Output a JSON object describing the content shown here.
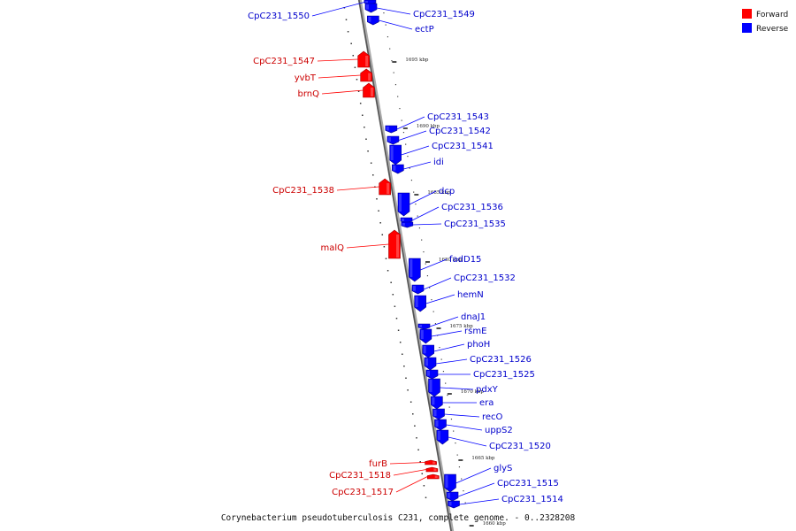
{
  "caption": "Corynebacterium pseudotuberculosis C231, complete genome. - 0..2328208",
  "legend": [
    {
      "label": "Forward",
      "color": "#ff0000"
    },
    {
      "label": "Reverse",
      "color": "#0000ff"
    }
  ],
  "colors": {
    "forward": "#ff0000",
    "reverse": "#0000ff",
    "backbone": "#888888"
  },
  "ticks": [
    "1695 kbp",
    "1690 kbp",
    "1685 kbp",
    "1680 kbp",
    "1675 kbp",
    "1670 kbp",
    "1665 kbp",
    "1660 kbp"
  ],
  "genes": [
    {
      "name": "CpC231_1550",
      "strand": "reverse"
    },
    {
      "name": "CpC231_1549",
      "strand": "reverse"
    },
    {
      "name": "ectP",
      "strand": "reverse"
    },
    {
      "name": "CpC231_1547",
      "strand": "forward"
    },
    {
      "name": "yvbT",
      "strand": "forward"
    },
    {
      "name": "brnQ",
      "strand": "forward"
    },
    {
      "name": "CpC231_1543",
      "strand": "reverse"
    },
    {
      "name": "CpC231_1542",
      "strand": "reverse"
    },
    {
      "name": "CpC231_1541",
      "strand": "reverse"
    },
    {
      "name": "idi",
      "strand": "reverse"
    },
    {
      "name": "CpC231_1538",
      "strand": "forward"
    },
    {
      "name": "dcp",
      "strand": "reverse"
    },
    {
      "name": "CpC231_1536",
      "strand": "reverse"
    },
    {
      "name": "CpC231_1535",
      "strand": "reverse"
    },
    {
      "name": "malQ",
      "strand": "forward"
    },
    {
      "name": "fadD15",
      "strand": "reverse"
    },
    {
      "name": "CpC231_1532",
      "strand": "reverse"
    },
    {
      "name": "hemN",
      "strand": "reverse"
    },
    {
      "name": "dnaJ1",
      "strand": "reverse"
    },
    {
      "name": "rsmE",
      "strand": "reverse"
    },
    {
      "name": "phoH",
      "strand": "reverse"
    },
    {
      "name": "CpC231_1526",
      "strand": "reverse"
    },
    {
      "name": "CpC231_1525",
      "strand": "reverse"
    },
    {
      "name": "pdxY",
      "strand": "reverse"
    },
    {
      "name": "era",
      "strand": "reverse"
    },
    {
      "name": "recO",
      "strand": "reverse"
    },
    {
      "name": "uppS2",
      "strand": "reverse"
    },
    {
      "name": "CpC231_1520",
      "strand": "reverse"
    },
    {
      "name": "glyS",
      "strand": "reverse"
    },
    {
      "name": "furB",
      "strand": "forward"
    },
    {
      "name": "CpC231_1518",
      "strand": "forward"
    },
    {
      "name": "CpC231_1517",
      "strand": "forward"
    },
    {
      "name": "CpC231_1515",
      "strand": "reverse"
    },
    {
      "name": "CpC231_1514",
      "strand": "reverse"
    }
  ]
}
